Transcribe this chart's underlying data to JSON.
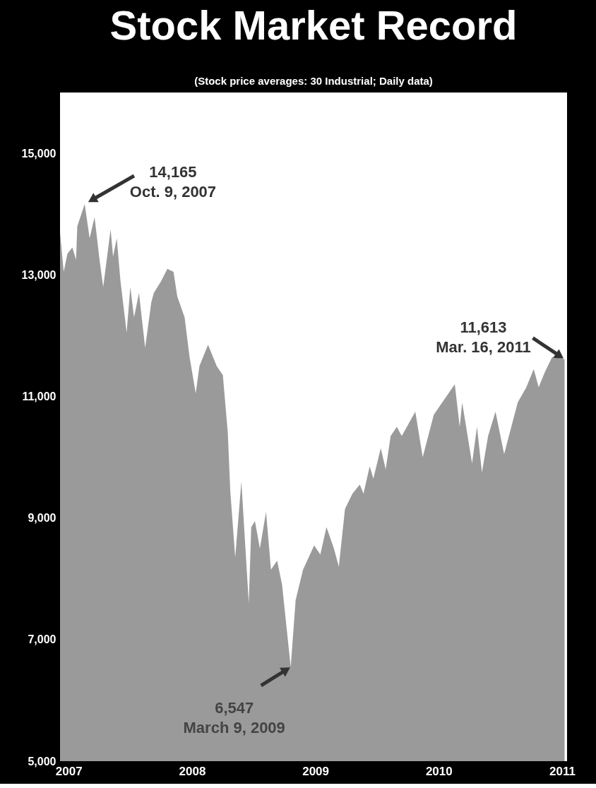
{
  "chart_data": {
    "type": "area",
    "title": "Stock Market Record",
    "subtitle": "(Stock price averages: 30 Industrial; Daily data)",
    "x": [
      2006.93,
      2006.96,
      2006.99,
      2007.03,
      2007.06,
      2007.07,
      2007.13,
      2007.17,
      2007.21,
      2007.23,
      2007.25,
      2007.28,
      2007.34,
      2007.36,
      2007.39,
      2007.42,
      2007.47,
      2007.5,
      2007.53,
      2007.57,
      2007.62,
      2007.67,
      2007.69,
      2007.75,
      2007.8,
      2007.85,
      2007.88,
      2007.94,
      2007.98,
      2008.03,
      2008.06,
      2008.13,
      2008.2,
      2008.25,
      2008.29,
      2008.31,
      2008.35,
      2008.4,
      2008.46,
      2008.48,
      2008.51,
      2008.55,
      2008.6,
      2008.64,
      2008.69,
      2008.73,
      2008.8,
      2008.84,
      2008.9,
      2008.99,
      2009.04,
      2009.09,
      2009.15,
      2009.19,
      2009.24,
      2009.3,
      2009.36,
      2009.39,
      2009.44,
      2009.47,
      2009.53,
      2009.57,
      2009.61,
      2009.66,
      2009.7,
      2009.81,
      2009.87,
      2009.96,
      2010.13,
      2010.17,
      2010.19,
      2010.27,
      2010.31,
      2010.35,
      2010.4,
      2010.46,
      2010.53,
      2010.64,
      2010.71,
      2010.77,
      2010.81,
      2010.86,
      2010.92,
      2011.02
    ],
    "series": [
      {
        "color": "#9a9a9a",
        "values": [
          13700,
          13050,
          13350,
          13450,
          13250,
          13800,
          14165,
          13600,
          13950,
          13600,
          13250,
          12800,
          13750,
          13300,
          13600,
          12900,
          12050,
          12800,
          12300,
          12700,
          11800,
          12550,
          12700,
          12900,
          13100,
          13050,
          12650,
          12300,
          11650,
          11050,
          11500,
          11850,
          11500,
          11350,
          10400,
          9450,
          8350,
          9600,
          7600,
          8850,
          8950,
          8500,
          9100,
          8150,
          8300,
          7900,
          6547,
          7650,
          8150,
          8550,
          8400,
          8850,
          8500,
          8200,
          9150,
          9400,
          9550,
          9400,
          9850,
          9650,
          10150,
          9800,
          10350,
          10500,
          10350,
          10750,
          10000,
          10700,
          11200,
          10500,
          10900,
          9900,
          10500,
          9750,
          10350,
          10750,
          10050,
          10900,
          11150,
          11450,
          11150,
          11400,
          11650,
          11613
        ]
      }
    ],
    "xlim": [
      2006.93,
      2011.04
    ],
    "xticks": [
      2007,
      2008,
      2009,
      2010,
      2011
    ],
    "ylim": [
      5000,
      16000
    ],
    "yticks": [
      {
        "value": 5000,
        "label": "5,000"
      },
      {
        "value": 7000,
        "label": "7,000"
      },
      {
        "value": 9000,
        "label": "9,000"
      },
      {
        "value": 11000,
        "label": "11,000"
      },
      {
        "value": 13000,
        "label": "13,000"
      },
      {
        "value": 15000,
        "label": "15,000"
      }
    ],
    "grid": false,
    "marker": "none",
    "annotations": [
      {
        "text": "14,165\nOct. 9, 2007",
        "x": 2007.13,
        "y": 14165
      },
      {
        "text": "6,547\nMarch 9, 2009",
        "x": 2008.8,
        "y": 6547
      },
      {
        "text": "11,613\nMar. 16, 2011",
        "x": 2011.02,
        "y": 11613
      }
    ]
  }
}
